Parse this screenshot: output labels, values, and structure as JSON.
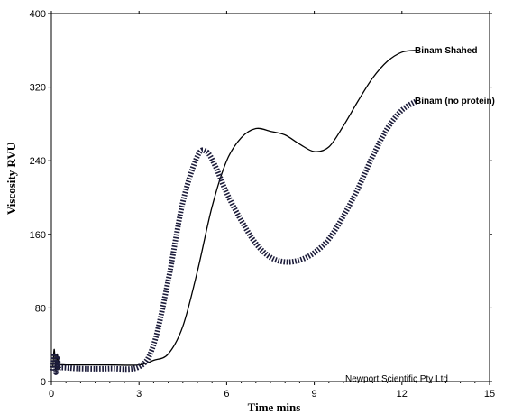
{
  "chart_data": {
    "type": "line",
    "title": "",
    "xlabel": "Time mins",
    "ylabel": "Viscosity RVU",
    "xlim": [
      0,
      15
    ],
    "ylim": [
      0,
      400
    ],
    "xticks": [
      0,
      3,
      6,
      9,
      12,
      15
    ],
    "yticks": [
      0,
      80,
      160,
      240,
      320,
      400
    ],
    "grid": false,
    "annotation": "Newport Scientific Pty Ltd",
    "series": [
      {
        "name": "Binam Shahed",
        "style": "solid",
        "color": "#000000",
        "x": [
          0.05,
          0.1,
          0.15,
          0.2,
          0.25,
          0.3,
          0.5,
          1.0,
          2.0,
          3.0,
          3.5,
          4.0,
          4.5,
          5.0,
          5.5,
          6.0,
          6.5,
          7.0,
          7.5,
          8.0,
          8.5,
          9.0,
          9.5,
          10.0,
          10.5,
          11.0,
          11.5,
          12.0,
          12.5
        ],
        "y": [
          15,
          35,
          12,
          30,
          14,
          18,
          18,
          18,
          18,
          18,
          23,
          30,
          60,
          120,
          190,
          240,
          265,
          275,
          272,
          268,
          258,
          250,
          255,
          278,
          305,
          330,
          348,
          358,
          360
        ]
      },
      {
        "name": "Binam (no protein)",
        "style": "dashed",
        "color": "#1c1c3a",
        "x": [
          0.05,
          0.1,
          0.15,
          0.2,
          0.25,
          0.3,
          0.5,
          1.0,
          2.0,
          3.0,
          3.5,
          4.0,
          4.5,
          5.0,
          5.3,
          5.6,
          6.0,
          6.5,
          7.0,
          7.5,
          8.0,
          8.5,
          9.0,
          9.5,
          10.0,
          10.5,
          11.0,
          11.5,
          12.0,
          12.5
        ],
        "y": [
          12,
          30,
          10,
          25,
          14,
          15,
          15,
          14,
          14,
          16,
          40,
          110,
          195,
          245,
          250,
          235,
          205,
          175,
          150,
          135,
          130,
          132,
          140,
          155,
          180,
          210,
          245,
          275,
          295,
          305
        ]
      }
    ]
  }
}
